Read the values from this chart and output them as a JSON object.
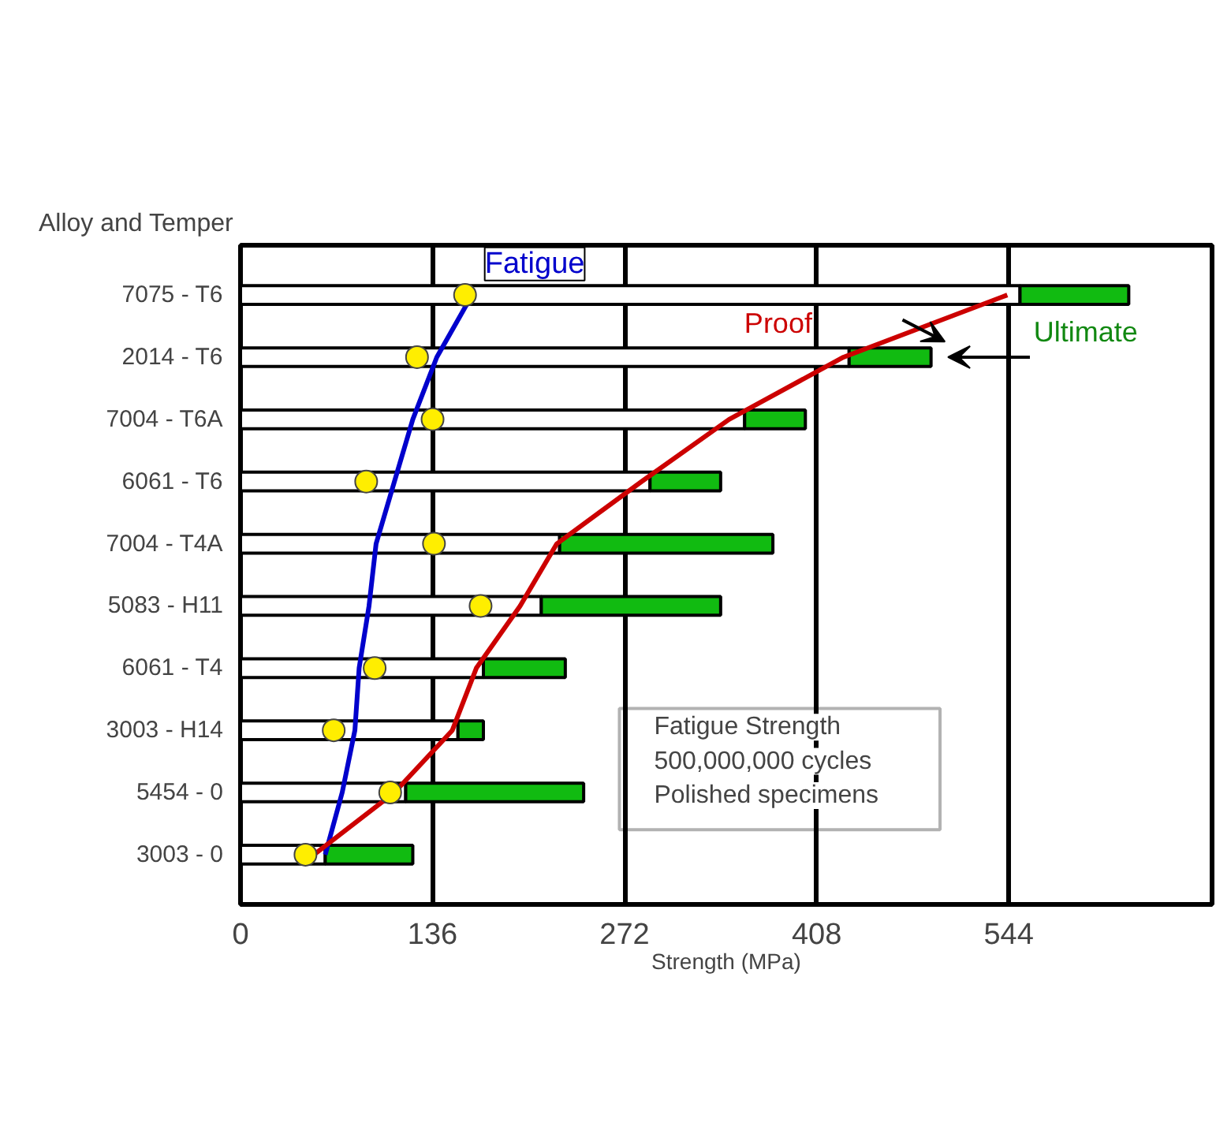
{
  "chart_data": {
    "type": "bar",
    "orientation": "horizontal",
    "stacked": true,
    "ylabel": "Alloy and Temper",
    "xlabel": "Strength (MPa)",
    "categories": [
      "7075 - T6",
      "2014 - T6",
      "7004 - T6A",
      "6061 - T6",
      "7004 - T4A",
      "5083 - H11",
      "6061 - T4",
      "3003 - H14",
      "5454 - 0",
      "3003 - 0"
    ],
    "series": [
      {
        "color": "#ffffff",
        "values": [
          552,
          431,
          357,
          290,
          226,
          213,
          172,
          154,
          117,
          60
        ]
      },
      {
        "name": "Ultimate",
        "color": "#11bb11",
        "values": [
          77,
          58,
          43,
          50,
          151,
          127,
          58,
          18,
          126,
          62
        ]
      },
      {
        "type": "scatter",
        "color": "#ffee00",
        "marker": "circle",
        "values": [
          159,
          125,
          136,
          89,
          137,
          170,
          95,
          66,
          106,
          46
        ]
      },
      {
        "type": "line",
        "name": "Fatigue",
        "color": "#0000cc",
        "values": [
          164,
          139,
          122,
          109,
          96,
          91,
          84,
          81,
          72,
          60
        ]
      },
      {
        "type": "line",
        "name": "Proof",
        "color": "#cc0000",
        "values": [
          543,
          427,
          346,
          284,
          224,
          198,
          167,
          150,
          109,
          52
        ]
      }
    ],
    "xlim": [
      0,
      688
    ],
    "xticks": [
      0,
      136,
      272,
      408,
      544
    ],
    "grid": "x",
    "legend": false,
    "annotations": [
      "Fatigue Strength",
      "500,000,000 cycles",
      "Polished specimens"
    ]
  }
}
